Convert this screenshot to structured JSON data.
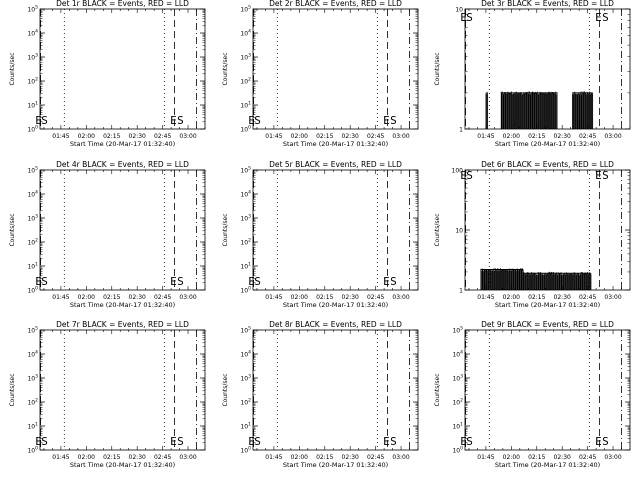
{
  "figure": {
    "xlabel": "Start Time (20-Mar-17 01:32:40)",
    "ylabel": "Counts/sec",
    "x_tick_labels": [
      "01:45",
      "02:00",
      "02:15",
      "02:30",
      "02:45",
      "03:00"
    ]
  },
  "chart_data": [
    {
      "type": "line",
      "title": "Det 1r BLACK = Events, RED = LLD",
      "xlabel": "Start Time (20-Mar-17 01:32:40)",
      "ylabel": "Counts/sec",
      "xlim": [
        "01:32:40",
        "03:10"
      ],
      "y_scale": "log",
      "ylim": [
        1,
        100000
      ],
      "y_tick_labels": [
        "10^0",
        "10^1",
        "10^2",
        "10^3",
        "10^4",
        "10^5"
      ],
      "vlines": [
        {
          "time": "01:33",
          "style": "dash"
        },
        {
          "time": "01:47",
          "style": "dot"
        },
        {
          "time": "02:46",
          "style": "dot"
        },
        {
          "time": "02:52",
          "style": "dash"
        },
        {
          "time": "03:05",
          "style": "dash-dot"
        }
      ],
      "marker_labels": [
        {
          "text": "E",
          "time": "01:33"
        },
        {
          "text": "S",
          "time": "01:33"
        },
        {
          "text": "E",
          "time": "02:52"
        },
        {
          "text": "S",
          "time": "02:52"
        }
      ],
      "series": []
    },
    {
      "type": "line",
      "title": "Det 2r BLACK = Events, RED = LLD",
      "xlabel": "Start Time (20-Mar-17 01:32:40)",
      "ylabel": "Counts/sec",
      "xlim": [
        "01:32:40",
        "03:10"
      ],
      "y_scale": "log",
      "ylim": [
        1,
        100000
      ],
      "y_tick_labels": [
        "10^0",
        "10^1",
        "10^2",
        "10^3",
        "10^4",
        "10^5"
      ],
      "vlines": [
        {
          "time": "01:33",
          "style": "dash"
        },
        {
          "time": "01:47",
          "style": "dot"
        },
        {
          "time": "02:46",
          "style": "dot"
        },
        {
          "time": "02:52",
          "style": "dash"
        },
        {
          "time": "03:05",
          "style": "dash-dot"
        }
      ],
      "marker_labels": [
        {
          "text": "E",
          "time": "01:33"
        },
        {
          "text": "S",
          "time": "01:33"
        },
        {
          "text": "E",
          "time": "02:52"
        },
        {
          "text": "S",
          "time": "02:52"
        }
      ],
      "series": []
    },
    {
      "type": "line",
      "title": "Det 3r BLACK = Events, RED = LLD",
      "xlabel": "Start Time (20-Mar-17 01:32:40)",
      "ylabel": "Counts/sec",
      "xlim": [
        "01:32:40",
        "03:10"
      ],
      "y_scale": "log",
      "ylim": [
        1,
        10
      ],
      "y_tick_labels": [
        "1",
        "10"
      ],
      "vlines": [
        {
          "time": "01:33",
          "style": "dash"
        },
        {
          "time": "01:47",
          "style": "dot"
        },
        {
          "time": "02:46",
          "style": "dot"
        },
        {
          "time": "02:52",
          "style": "dash"
        },
        {
          "time": "03:05",
          "style": "dash-dot"
        }
      ],
      "marker_labels": [
        {
          "text": "E",
          "time": "01:33"
        },
        {
          "text": "S",
          "time": "01:33"
        },
        {
          "text": "E",
          "time": "02:52"
        },
        {
          "text": "S",
          "time": "02:52"
        }
      ],
      "series": [
        {
          "color": "#000000",
          "segments": [
            {
              "t0": "01:45",
              "t1": "01:46",
              "value": 2
            },
            {
              "t0": "01:54",
              "t1": "02:27",
              "value": 2
            },
            {
              "t0": "02:36",
              "t1": "02:48",
              "value": 2
            }
          ]
        }
      ]
    },
    {
      "type": "line",
      "title": "Det 4r BLACK = Events, RED = LLD",
      "xlabel": "Start Time (20-Mar-17 01:32:40)",
      "ylabel": "Counts/sec",
      "xlim": [
        "01:32:40",
        "03:10"
      ],
      "y_scale": "log",
      "ylim": [
        1,
        100000
      ],
      "y_tick_labels": [
        "10^0",
        "10^1",
        "10^2",
        "10^3",
        "10^4",
        "10^5"
      ],
      "vlines": [
        {
          "time": "01:33",
          "style": "dash"
        },
        {
          "time": "01:47",
          "style": "dot"
        },
        {
          "time": "02:46",
          "style": "dot"
        },
        {
          "time": "02:52",
          "style": "dash"
        },
        {
          "time": "03:05",
          "style": "dash-dot"
        }
      ],
      "marker_labels": [
        {
          "text": "E",
          "time": "01:33"
        },
        {
          "text": "S",
          "time": "01:33"
        },
        {
          "text": "E",
          "time": "02:52"
        },
        {
          "text": "S",
          "time": "02:52"
        }
      ],
      "series": []
    },
    {
      "type": "line",
      "title": "Det 5r BLACK = Events, RED = LLD",
      "xlabel": "Start Time (20-Mar-17 01:32:40)",
      "ylabel": "Counts/sec",
      "xlim": [
        "01:32:40",
        "03:10"
      ],
      "y_scale": "log",
      "ylim": [
        1,
        100000
      ],
      "y_tick_labels": [
        "10^0",
        "10^1",
        "10^2",
        "10^3",
        "10^4",
        "10^5"
      ],
      "vlines": [
        {
          "time": "01:33",
          "style": "dash"
        },
        {
          "time": "01:47",
          "style": "dot"
        },
        {
          "time": "02:46",
          "style": "dot"
        },
        {
          "time": "02:52",
          "style": "dash"
        },
        {
          "time": "03:05",
          "style": "dash-dot"
        }
      ],
      "marker_labels": [
        {
          "text": "E",
          "time": "01:33"
        },
        {
          "text": "S",
          "time": "01:33"
        },
        {
          "text": "E",
          "time": "02:52"
        },
        {
          "text": "S",
          "time": "02:52"
        }
      ],
      "series": []
    },
    {
      "type": "line",
      "title": "Det 6r BLACK = Events, RED = LLD",
      "xlabel": "Start Time (20-Mar-17 01:32:40)",
      "ylabel": "Counts/sec",
      "xlim": [
        "01:32:40",
        "03:10"
      ],
      "y_scale": "log",
      "ylim": [
        1,
        100
      ],
      "y_tick_labels": [
        "1",
        "10",
        "100"
      ],
      "vlines": [
        {
          "time": "01:33",
          "style": "dash"
        },
        {
          "time": "01:47",
          "style": "dot"
        },
        {
          "time": "02:46",
          "style": "dot"
        },
        {
          "time": "02:52",
          "style": "dash"
        },
        {
          "time": "03:05",
          "style": "dash-dot"
        }
      ],
      "marker_labels": [
        {
          "text": "E",
          "time": "01:33"
        },
        {
          "text": "S",
          "time": "01:33"
        },
        {
          "text": "E",
          "time": "02:52"
        },
        {
          "text": "S",
          "time": "02:52"
        }
      ],
      "series": [
        {
          "color": "#000000",
          "segments": [
            {
              "t0": "01:42",
              "t1": "02:07",
              "value": 2.2
            },
            {
              "t0": "02:07",
              "t1": "02:47",
              "value": 1.9
            }
          ]
        }
      ]
    },
    {
      "type": "line",
      "title": "Det 7r BLACK = Events, RED = LLD",
      "xlabel": "Start Time (20-Mar-17 01:32:40)",
      "ylabel": "Counts/sec",
      "xlim": [
        "01:32:40",
        "03:10"
      ],
      "y_scale": "log",
      "ylim": [
        1,
        100000
      ],
      "y_tick_labels": [
        "10^0",
        "10^1",
        "10^2",
        "10^3",
        "10^4",
        "10^5"
      ],
      "vlines": [
        {
          "time": "01:33",
          "style": "dash"
        },
        {
          "time": "01:47",
          "style": "dot"
        },
        {
          "time": "02:46",
          "style": "dot"
        },
        {
          "time": "02:52",
          "style": "dash"
        },
        {
          "time": "03:05",
          "style": "dash-dot"
        }
      ],
      "marker_labels": [
        {
          "text": "E",
          "time": "01:33"
        },
        {
          "text": "S",
          "time": "01:33"
        },
        {
          "text": "E",
          "time": "02:52"
        },
        {
          "text": "S",
          "time": "02:52"
        }
      ],
      "series": []
    },
    {
      "type": "line",
      "title": "Det 8r BLACK = Events, RED = LLD",
      "xlabel": "Start Time (20-Mar-17 01:32:40)",
      "ylabel": "Counts/sec",
      "xlim": [
        "01:32:40",
        "03:10"
      ],
      "y_scale": "log",
      "ylim": [
        1,
        100000
      ],
      "y_tick_labels": [
        "10^0",
        "10^1",
        "10^2",
        "10^3",
        "10^4",
        "10^5"
      ],
      "vlines": [
        {
          "time": "01:33",
          "style": "dash"
        },
        {
          "time": "01:47",
          "style": "dot"
        },
        {
          "time": "02:46",
          "style": "dot"
        },
        {
          "time": "02:52",
          "style": "dash"
        },
        {
          "time": "03:05",
          "style": "dash-dot"
        }
      ],
      "marker_labels": [
        {
          "text": "E",
          "time": "01:33"
        },
        {
          "text": "S",
          "time": "01:33"
        },
        {
          "text": "E",
          "time": "02:52"
        },
        {
          "text": "S",
          "time": "02:52"
        }
      ],
      "series": []
    },
    {
      "type": "line",
      "title": "Det 9r BLACK = Events, RED = LLD",
      "xlabel": "Start Time (20-Mar-17 01:32:40)",
      "ylabel": "Counts/sec",
      "xlim": [
        "01:32:40",
        "03:10"
      ],
      "y_scale": "log",
      "ylim": [
        1,
        100000
      ],
      "y_tick_labels": [
        "10^0",
        "10^1",
        "10^2",
        "10^3",
        "10^4",
        "10^5"
      ],
      "vlines": [
        {
          "time": "01:33",
          "style": "dash"
        },
        {
          "time": "01:47",
          "style": "dot"
        },
        {
          "time": "02:46",
          "style": "dot"
        },
        {
          "time": "02:52",
          "style": "dash"
        },
        {
          "time": "03:05",
          "style": "dash-dot"
        }
      ],
      "marker_labels": [
        {
          "text": "E",
          "time": "01:33"
        },
        {
          "text": "S",
          "time": "01:33"
        },
        {
          "text": "E",
          "time": "02:52"
        },
        {
          "text": "S",
          "time": "02:52"
        }
      ],
      "series": []
    }
  ]
}
